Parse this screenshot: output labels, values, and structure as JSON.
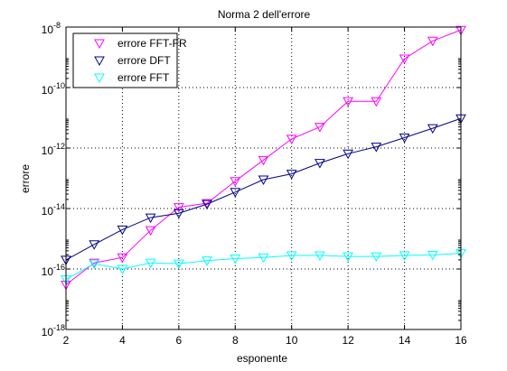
{
  "chart_data": {
    "type": "line",
    "title": "Norma 2 dell'errore",
    "xlabel": "esponente",
    "ylabel": "errore",
    "xlim": [
      2,
      16
    ],
    "ylim_exponent": [
      -18,
      -8
    ],
    "yscale": "log",
    "grid": true,
    "legend_position": "top-left",
    "x_ticks": [
      2,
      4,
      6,
      8,
      10,
      12,
      14,
      16
    ],
    "x_tick_labels": [
      "2",
      "4",
      "6",
      "8",
      "10",
      "12",
      "14",
      "16"
    ],
    "y_tick_exponents": [
      -18,
      -16,
      -14,
      -12,
      -10,
      -8
    ],
    "y_tick_base": "10",
    "y_tick_exp_labels": [
      "-18",
      "-16",
      "-14",
      "-12",
      "-10",
      "-8"
    ],
    "x": [
      2,
      3,
      4,
      5,
      6,
      7,
      8,
      9,
      10,
      11,
      12,
      13,
      14,
      15,
      16
    ],
    "series": [
      {
        "name": "errore FFT-FR",
        "color": "#ff00ff",
        "marker": "triangle-down",
        "values": [
          3e-17,
          1.6e-16,
          2.4e-16,
          1.9e-15,
          1.1e-14,
          1.5e-14,
          8e-14,
          4e-13,
          2e-12,
          5e-12,
          3.5e-11,
          3.5e-11,
          9e-10,
          3.5e-09,
          8e-09
        ]
      },
      {
        "name": "errore DFT",
        "color": "#00008b",
        "marker": "triangle-down",
        "values": [
          2e-16,
          6.5e-16,
          2e-15,
          5e-15,
          7e-15,
          1.4e-14,
          3.5e-14,
          9e-14,
          1.4e-13,
          3.2e-13,
          6.5e-13,
          1.1e-12,
          2.2e-12,
          4.5e-12,
          9.5e-12
        ]
      },
      {
        "name": "errore FFT",
        "color": "#00ffff",
        "marker": "triangle-down",
        "values": [
          4.5e-17,
          1.5e-16,
          1e-16,
          1.6e-16,
          1.5e-16,
          1.9e-16,
          2.2e-16,
          2.4e-16,
          2.8e-16,
          2.8e-16,
          2.6e-16,
          2.6e-16,
          2.8e-16,
          2.9e-16,
          3.3e-16
        ]
      }
    ]
  }
}
